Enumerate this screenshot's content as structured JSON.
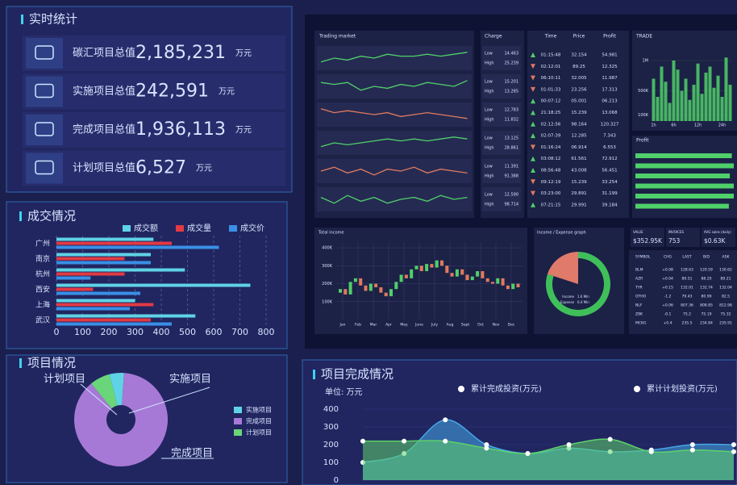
{
  "stats": {
    "title": "实时统计",
    "items": [
      {
        "label": "碳汇项目总值",
        "value": "2,185,231",
        "unit": "万元",
        "color": "#f0455a"
      },
      {
        "label": "实施项目总值",
        "value": "242,591",
        "unit": "万元",
        "color": "#4fe08a"
      },
      {
        "label": "完成项目总值",
        "value": "1,936,113",
        "unit": "万元",
        "color": "#f2cf3c"
      },
      {
        "label": "计划项目总值",
        "value": "6,527",
        "unit": "万元",
        "color": "#3fd3f0"
      }
    ]
  },
  "chart_data": [
    {
      "type": "bar",
      "orientation": "horizontal",
      "title": "成交情况",
      "categories": [
        "广州",
        "南京",
        "杭州",
        "西安",
        "上海",
        "武汉"
      ],
      "series": [
        {
          "name": "成交额",
          "color": "#5fd3e6",
          "values": [
            370,
            360,
            490,
            740,
            300,
            530
          ]
        },
        {
          "name": "成交量",
          "color": "#e23a44",
          "values": [
            440,
            260,
            260,
            140,
            370,
            360
          ]
        },
        {
          "name": "成交价",
          "color": "#3a8fe6",
          "values": [
            620,
            360,
            130,
            320,
            280,
            440
          ]
        }
      ],
      "xlim": [
        0,
        800
      ],
      "xticks": [
        0,
        100,
        200,
        300,
        400,
        500,
        600,
        700,
        800
      ],
      "grid": true
    },
    {
      "type": "pie",
      "title": "项目情况",
      "categories": [
        "实施项目",
        "完成项目",
        "计划项目"
      ],
      "values": [
        5,
        88,
        7
      ],
      "colors": [
        "#5fd3e6",
        "#a779d6",
        "#6ad67a"
      ]
    },
    {
      "type": "area",
      "title": "项目完成情况",
      "subtitle": "单位: 万元",
      "categories": [
        null,
        null,
        null,
        null,
        null,
        null,
        null,
        null,
        null,
        null
      ],
      "series": [
        {
          "name": "累计完成投资(万元)",
          "color": "#45a8e6",
          "values": [
            100,
            150,
            340,
            200,
            150,
            180,
            160,
            170,
            200,
            200
          ]
        },
        {
          "name": "累计计划投资(万元)",
          "color": "#5fd16a",
          "values": [
            220,
            220,
            220,
            180,
            150,
            200,
            230,
            160,
            170,
            160
          ]
        }
      ],
      "ylim": [
        0,
        400
      ],
      "yticks": [
        0,
        100,
        200,
        300,
        400
      ]
    },
    {
      "type": "line",
      "title": "Trading market",
      "ylim": [
        0,
        10
      ],
      "series": [
        {
          "color": "#4fd06a",
          "values": [
            3,
            5,
            4,
            6,
            5,
            7,
            6,
            6,
            7,
            6,
            7,
            8
          ]
        },
        {
          "color": "#4fd06a",
          "values": [
            7,
            6,
            7,
            3,
            5,
            4,
            6,
            5,
            7,
            6,
            5,
            8
          ]
        },
        {
          "color": "#e07a5f",
          "values": [
            8,
            6,
            7,
            6,
            5,
            6,
            4,
            5,
            6,
            5,
            4,
            3
          ]
        },
        {
          "color": "#4fd06a",
          "values": [
            3,
            5,
            4,
            5,
            6,
            7,
            6,
            7,
            6,
            7,
            8,
            7
          ]
        },
        {
          "color": "#e07a5f",
          "values": [
            5,
            7,
            4,
            6,
            3,
            6,
            5,
            7,
            4,
            6,
            5,
            4
          ]
        },
        {
          "color": "#4fd06a",
          "values": [
            6,
            3,
            7,
            4,
            6,
            3,
            5,
            6,
            4,
            7,
            5,
            6
          ]
        }
      ]
    },
    {
      "type": "bar",
      "title": "TRADE",
      "color": "#4fd06a",
      "categories": [
        "1h",
        null,
        null,
        null,
        null,
        "6h",
        null,
        null,
        null,
        null,
        null,
        "12h",
        null,
        null,
        null,
        null,
        null,
        "24h",
        null,
        null
      ],
      "values": [
        700,
        400,
        900,
        650,
        300,
        1000,
        850,
        500,
        700,
        350,
        600,
        950,
        450,
        800,
        900,
        550,
        750,
        400,
        1050,
        600
      ],
      "ylim": [
        0,
        1200
      ],
      "yticks": [
        {
          "value": 1000,
          "label": "1M"
        },
        {
          "value": 500,
          "label": "500K"
        },
        {
          "value": 100,
          "label": "100K"
        }
      ]
    },
    {
      "type": "bar",
      "orientation": "horizontal",
      "title": "Profit",
      "color": "#4fd06a",
      "values": [
        98,
        100,
        96,
        100,
        100,
        95
      ],
      "xlim": [
        0,
        100
      ]
    },
    {
      "type": "candlestick",
      "title": "Total income",
      "categories": [
        "Jan",
        "Feb",
        "Mar",
        "Apr",
        "May",
        "June",
        "July",
        "Aug",
        "Sept",
        "Oct",
        "Nov",
        "Dec"
      ],
      "open": [
        150,
        170,
        140,
        210,
        230,
        190,
        160,
        200,
        180,
        150,
        130,
        170,
        210,
        250,
        230,
        280,
        300,
        270,
        310,
        290,
        330,
        300,
        260,
        240,
        280,
        250,
        220,
        240,
        270,
        230,
        210,
        200,
        230,
        190,
        170,
        200
      ],
      "close": [
        170,
        140,
        210,
        230,
        190,
        160,
        200,
        180,
        150,
        130,
        170,
        210,
        250,
        230,
        280,
        300,
        270,
        310,
        290,
        330,
        300,
        260,
        240,
        280,
        250,
        220,
        240,
        270,
        230,
        210,
        200,
        230,
        190,
        170,
        200,
        180
      ],
      "up_color": "#4fd06a",
      "down_color": "#e07a5f",
      "ylim": [
        0,
        450
      ],
      "yticks": [
        {
          "value": 100,
          "label": "100K"
        },
        {
          "value": 200,
          "label": "200K"
        },
        {
          "value": 300,
          "label": "300K"
        },
        {
          "value": 400,
          "label": "400K"
        }
      ]
    },
    {
      "type": "pie",
      "title": "Income / Expense graph",
      "categories": [
        "Income",
        "Expense"
      ],
      "values": [
        1.6,
        0.4
      ],
      "value_labels": [
        "1.6 Mln",
        "0.4 Mln"
      ],
      "colors": [
        "#3fbf5a",
        "#e07a6a"
      ]
    }
  ],
  "market": {
    "charge": {
      "title": "Charge",
      "low": "Low",
      "high": "High",
      "rows": [
        [
          "14.463",
          "25.239"
        ],
        [
          "15.201",
          "13.285"
        ],
        [
          "12.783",
          "11.832"
        ],
        [
          "13.125",
          "28.861"
        ],
        [
          "11.391",
          "91.388"
        ],
        [
          "12.590",
          "98.714"
        ]
      ]
    },
    "trades": {
      "headers": [
        "Time",
        "Price",
        "Profit"
      ],
      "rows": [
        [
          "01:15:48",
          "32.154",
          "54.981"
        ],
        [
          "02:12:01",
          "89.25",
          "12.325"
        ],
        [
          "06:10:11",
          "32.005",
          "11.987"
        ],
        [
          "01:01:33",
          "23.256",
          "17.313"
        ],
        [
          "00:07:12",
          "05.001",
          "06.213"
        ],
        [
          "21:18:25",
          "15.239",
          "13.068"
        ],
        [
          "02:12:56",
          "98.164",
          "120.327"
        ],
        [
          "02:07:39",
          "12.285",
          "7.343"
        ],
        [
          "01:16:24",
          "06.914",
          "6.553"
        ],
        [
          "03:08:12",
          "61.561",
          "72.912"
        ],
        [
          "08:56:48",
          "43.008",
          "56.451"
        ],
        [
          "09:12:19",
          "15.239",
          "33.254"
        ],
        [
          "03:23:00",
          "29.891",
          "31.199"
        ],
        [
          "07:21:15",
          "29.991",
          "39.184"
        ]
      ],
      "trend": [
        "up",
        "down",
        "down",
        "down",
        "up",
        "up",
        "up",
        "up",
        "down",
        "up",
        "up",
        "down",
        "down",
        "up"
      ]
    },
    "kpis": [
      {
        "label": "VALUE",
        "value": "$352.95K"
      },
      {
        "label": "INVOICES",
        "value": "753"
      },
      {
        "label": "AVG sales (daily)",
        "value": "$0.63K"
      }
    ],
    "symbols": {
      "headers": [
        "SYMBOL",
        "CHG",
        "LAST",
        "BID",
        "ASK"
      ],
      "rows": [
        [
          "BLM",
          "+0.08",
          "128.63",
          "120.59",
          "130.62"
        ],
        [
          "AZR",
          "+0.04",
          "89.51",
          "88.20",
          "89.21"
        ],
        [
          "TYR",
          "+0.15",
          "132.01",
          "132.74",
          "132.04"
        ],
        [
          "OTHO",
          "-1.2",
          "79.43",
          "80.99",
          "82.5"
        ],
        [
          "NLF",
          "+0.06",
          "807.36",
          "808.85",
          "812.98"
        ],
        [
          "ZBK",
          "-0.1",
          "75.2",
          "75.19",
          "75.32"
        ],
        [
          "MCKG",
          "+0.4",
          "235.5",
          "234.84",
          "235.91"
        ]
      ]
    }
  }
}
